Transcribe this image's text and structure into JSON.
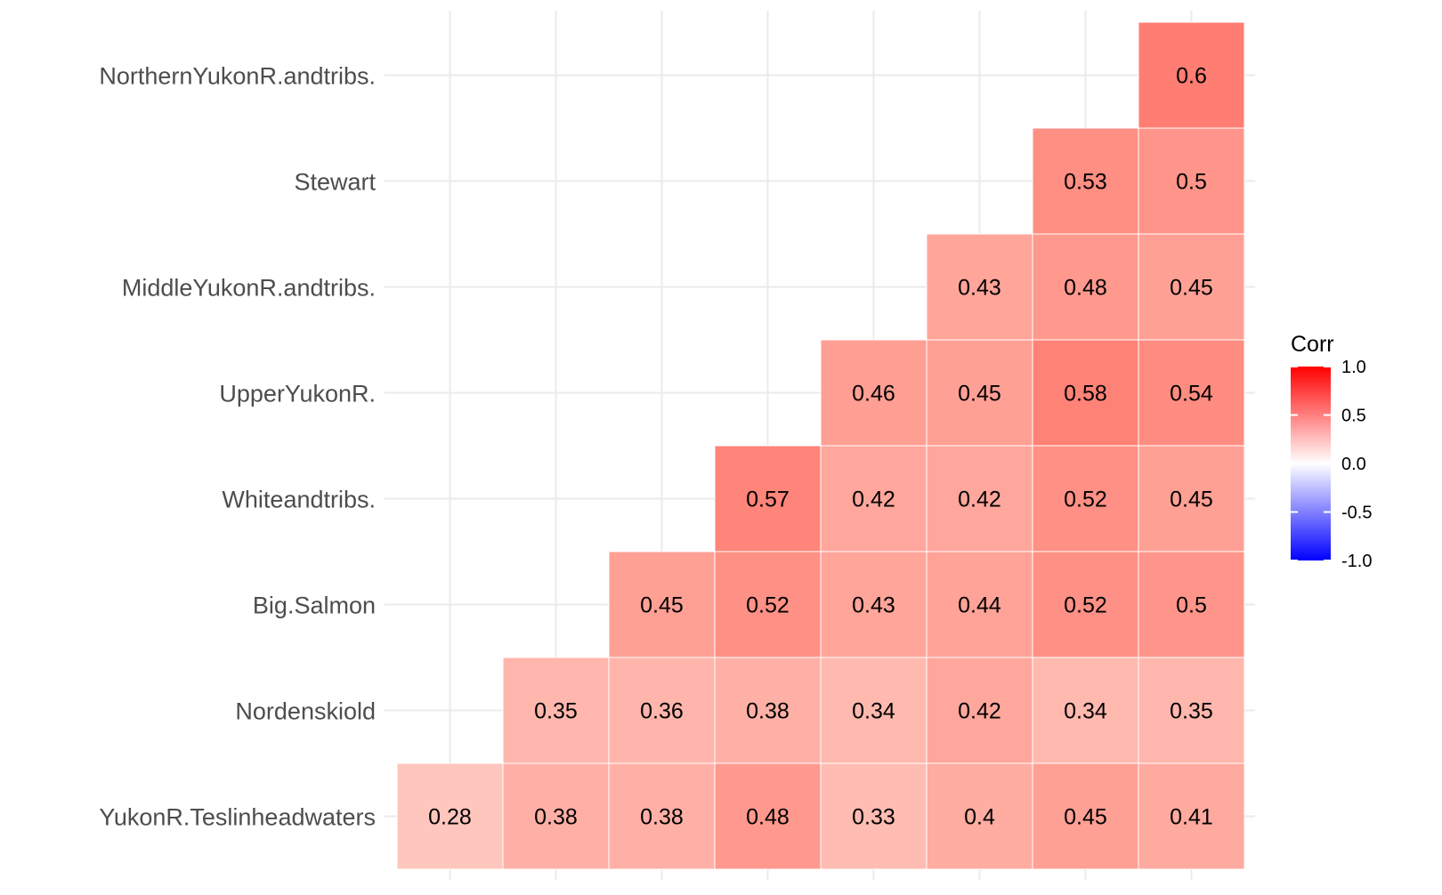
{
  "chart_data": {
    "type": "heatmap",
    "title": "",
    "xlabel": "",
    "ylabel": "",
    "rows": [
      "NorthernYukonR.andtribs.",
      "Stewart",
      "MiddleYukonR.andtribs.",
      "UpperYukonR.",
      "Whiteandtribs.",
      "Big.Salmon",
      "Nordenskiold",
      "YukonR.Teslinheadwaters"
    ],
    "n_columns": 8,
    "values": [
      [
        null,
        null,
        null,
        null,
        null,
        null,
        null,
        0.6
      ],
      [
        null,
        null,
        null,
        null,
        null,
        null,
        0.53,
        0.5
      ],
      [
        null,
        null,
        null,
        null,
        null,
        0.43,
        0.48,
        0.45
      ],
      [
        null,
        null,
        null,
        null,
        0.46,
        0.45,
        0.58,
        0.54
      ],
      [
        null,
        null,
        null,
        0.57,
        0.42,
        0.42,
        0.52,
        0.45
      ],
      [
        null,
        null,
        0.45,
        0.52,
        0.43,
        0.44,
        0.52,
        0.5
      ],
      [
        null,
        0.35,
        0.36,
        0.38,
        0.34,
        0.42,
        0.34,
        0.35
      ],
      [
        0.28,
        0.38,
        0.38,
        0.48,
        0.33,
        0.4,
        0.45,
        0.41
      ]
    ],
    "labels": [
      [
        null,
        null,
        null,
        null,
        null,
        null,
        null,
        "0.6"
      ],
      [
        null,
        null,
        null,
        null,
        null,
        null,
        "0.53",
        "0.5"
      ],
      [
        null,
        null,
        null,
        null,
        null,
        "0.43",
        "0.48",
        "0.45"
      ],
      [
        null,
        null,
        null,
        null,
        "0.46",
        "0.45",
        "0.58",
        "0.54"
      ],
      [
        null,
        null,
        null,
        "0.57",
        "0.42",
        "0.42",
        "0.52",
        "0.45"
      ],
      [
        null,
        null,
        "0.45",
        "0.52",
        "0.43",
        "0.44",
        "0.52",
        "0.5"
      ],
      [
        null,
        "0.35",
        "0.36",
        "0.38",
        "0.34",
        "0.42",
        "0.34",
        "0.35"
      ],
      [
        "0.28",
        "0.38",
        "0.38",
        "0.48",
        "0.33",
        "0.4",
        "0.45",
        "0.41"
      ]
    ],
    "color_scale": {
      "low": "#0000FF",
      "mid": "#FFFFFF",
      "high": "#FF0000",
      "limits": [
        -1,
        1
      ]
    },
    "legend": {
      "title": "Corr",
      "ticks": [
        "1.0",
        "0.5",
        "0.0",
        "-0.5",
        "-1.0"
      ],
      "tick_values": [
        1,
        0.5,
        0,
        -0.5,
        -1
      ],
      "position": "right"
    },
    "grid": true
  }
}
